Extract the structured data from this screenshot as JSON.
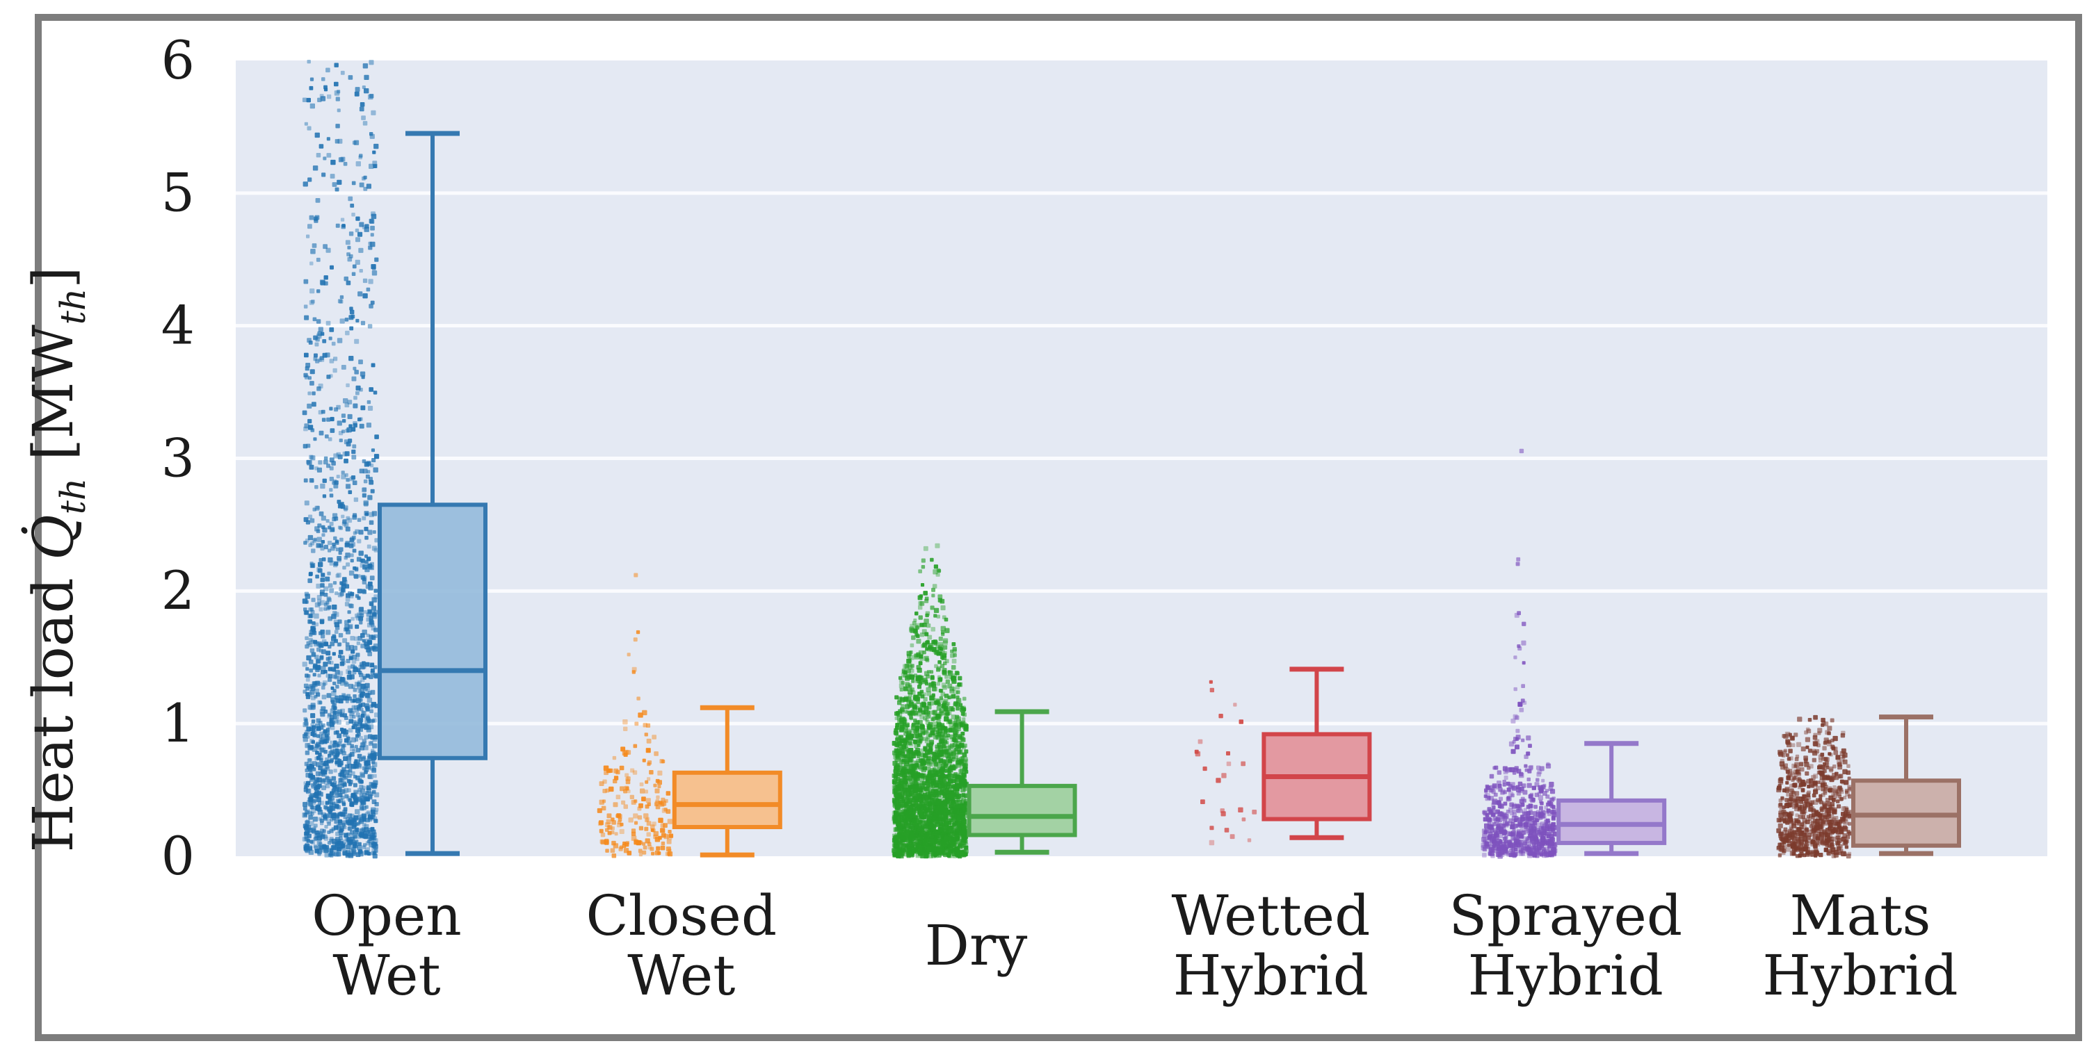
{
  "figure": {
    "background": "#ffffff",
    "frame_color": "#7d7d7d",
    "plot_bg": "#e4e9f3",
    "grid_color": "#fafbfe",
    "text_color": "#1b1b1b"
  },
  "chart_data": {
    "type": "boxplot+strip",
    "title": "",
    "ylabel": "Heat load Q̇th [MWth]",
    "ylabel_parts": {
      "prefix": "Heat load ",
      "q_symbol": "Q̇",
      "sub1": "th",
      "mid": " [MW",
      "sub2": "th",
      "suffix": "]"
    },
    "ylim": [
      0,
      6
    ],
    "yticks": [
      0,
      1,
      2,
      3,
      4,
      5,
      6
    ],
    "grid": true,
    "legend": false,
    "categories": [
      {
        "id": "open-wet",
        "label_lines": [
          "Open",
          "Wet"
        ],
        "colors": {
          "point": "#2273b2",
          "edge": "#3579b1",
          "fill": "#94badb"
        },
        "box": {
          "whislo": 0.02,
          "q1": 0.74,
          "med": 1.4,
          "q3": 2.65,
          "whishi": 5.45
        },
        "strip": {
          "seed": 101,
          "bands": [
            [
              0.0,
              0.25,
              240,
              1
            ],
            [
              0.25,
              0.5,
              205,
              1
            ],
            [
              0.5,
              0.75,
              175,
              1
            ],
            [
              0.75,
              1.0,
              150,
              1
            ],
            [
              1.0,
              1.25,
              130,
              1
            ],
            [
              1.25,
              1.5,
              115,
              1
            ],
            [
              1.5,
              1.75,
              100,
              1
            ],
            [
              1.75,
              2.0,
              90,
              1
            ],
            [
              2.0,
              2.25,
              75,
              1
            ],
            [
              2.25,
              2.5,
              65,
              1
            ],
            [
              2.5,
              3.0,
              95,
              1
            ],
            [
              3.0,
              3.5,
              70,
              1
            ],
            [
              3.5,
              4.0,
              55,
              1
            ],
            [
              4.0,
              4.5,
              46,
              1
            ],
            [
              4.5,
              5.0,
              42,
              1
            ],
            [
              5.0,
              5.5,
              40,
              1
            ],
            [
              5.5,
              6.0,
              38,
              1
            ]
          ]
        }
      },
      {
        "id": "closed-wet",
        "label_lines": [
          "Closed",
          "Wet"
        ],
        "colors": {
          "point": "#f58a1d",
          "edge": "#f28b27",
          "fill": "#f7bd84"
        },
        "box": {
          "whislo": 0.01,
          "q1": 0.22,
          "med": 0.39,
          "q3": 0.63,
          "whishi": 1.12
        },
        "strip": {
          "seed": 202,
          "bands": [
            [
              0.0,
              0.15,
              52,
              1
            ],
            [
              0.15,
              0.3,
              44,
              1
            ],
            [
              0.3,
              0.45,
              36,
              1
            ],
            [
              0.45,
              0.6,
              26,
              0.95
            ],
            [
              0.6,
              0.75,
              18,
              0.85
            ],
            [
              0.75,
              0.9,
              11,
              0.6
            ],
            [
              0.9,
              1.05,
              6,
              0.45
            ],
            [
              1.05,
              1.2,
              3,
              0.3
            ],
            [
              1.3,
              1.55,
              3,
              0.25
            ],
            [
              1.6,
              1.75,
              2,
              0.2
            ],
            [
              2.05,
              2.12,
              1,
              0.06
            ]
          ]
        }
      },
      {
        "id": "dry",
        "label_lines": [
          "Dry"
        ],
        "colors": {
          "point": "#27a027",
          "edge": "#4ba64b",
          "fill": "#9bcf9b"
        },
        "box": {
          "whislo": 0.03,
          "q1": 0.16,
          "med": 0.3,
          "q3": 0.53,
          "whishi": 1.09
        },
        "strip": {
          "seed": 303,
          "bands": [
            [
              0.0,
              0.2,
              680,
              1
            ],
            [
              0.2,
              0.4,
              560,
              1
            ],
            [
              0.4,
              0.6,
              430,
              1
            ],
            [
              0.6,
              0.8,
              310,
              1
            ],
            [
              0.8,
              1.0,
              230,
              1
            ],
            [
              1.0,
              1.2,
              160,
              0.95
            ],
            [
              1.2,
              1.4,
              105,
              0.85
            ],
            [
              1.4,
              1.6,
              70,
              0.7
            ],
            [
              1.6,
              1.8,
              42,
              0.55
            ],
            [
              1.8,
              2.0,
              22,
              0.4
            ],
            [
              2.0,
              2.2,
              10,
              0.3
            ],
            [
              2.2,
              2.35,
              4,
              0.2
            ]
          ]
        }
      },
      {
        "id": "wetted-hybrid",
        "label_lines": [
          "Wetted",
          "Hybrid"
        ],
        "colors": {
          "point": "#d24a46",
          "edge": "#d2454a",
          "fill": "#e29098"
        },
        "box": {
          "whislo": 0.14,
          "q1": 0.28,
          "med": 0.6,
          "q3": 0.92,
          "whishi": 1.41
        },
        "strip": {
          "seed": 404,
          "bands": [
            [
              0.05,
              0.25,
              5,
              0.85
            ],
            [
              0.25,
              0.5,
              6,
              0.85
            ],
            [
              0.5,
              0.75,
              5,
              0.85
            ],
            [
              0.75,
              1.0,
              4,
              0.8
            ],
            [
              1.0,
              1.2,
              3,
              0.6
            ],
            [
              1.25,
              1.45,
              2,
              0.5
            ]
          ]
        }
      },
      {
        "id": "sprayed-hybrid",
        "label_lines": [
          "Sprayed",
          "Hybrid"
        ],
        "colors": {
          "point": "#7e52be",
          "edge": "#9478ca",
          "fill": "#c4b0e0"
        },
        "box": {
          "whislo": 0.02,
          "q1": 0.1,
          "med": 0.24,
          "q3": 0.42,
          "whishi": 0.85
        },
        "strip": {
          "seed": 505,
          "bands": [
            [
              0.0,
              0.12,
              210,
              1
            ],
            [
              0.12,
              0.25,
              170,
              1
            ],
            [
              0.25,
              0.4,
              125,
              1
            ],
            [
              0.4,
              0.55,
              80,
              0.95
            ],
            [
              0.55,
              0.7,
              32,
              0.8
            ],
            [
              0.7,
              0.9,
              12,
              0.3
            ],
            [
              0.9,
              1.2,
              9,
              0.18
            ],
            [
              1.2,
              1.6,
              6,
              0.15
            ],
            [
              1.6,
              2.05,
              4,
              0.12
            ],
            [
              2.2,
              2.35,
              2,
              0.1
            ],
            [
              3.05,
              3.15,
              1,
              0.06
            ]
          ]
        }
      },
      {
        "id": "mats-hybrid",
        "label_lines": [
          "Mats",
          "Hybrid"
        ],
        "colors": {
          "point": "#7c3b2d",
          "edge": "#9b7166",
          "fill": "#c9aba4"
        },
        "box": {
          "whislo": 0.02,
          "q1": 0.08,
          "med": 0.31,
          "q3": 0.57,
          "whishi": 1.05
        },
        "strip": {
          "seed": 606,
          "bands": [
            [
              0.0,
              0.2,
              235,
              1
            ],
            [
              0.2,
              0.4,
              195,
              1
            ],
            [
              0.4,
              0.6,
              145,
              1
            ],
            [
              0.6,
              0.8,
              95,
              0.95
            ],
            [
              0.8,
              0.95,
              42,
              0.85
            ],
            [
              0.95,
              1.05,
              10,
              0.55
            ]
          ]
        }
      }
    ]
  }
}
